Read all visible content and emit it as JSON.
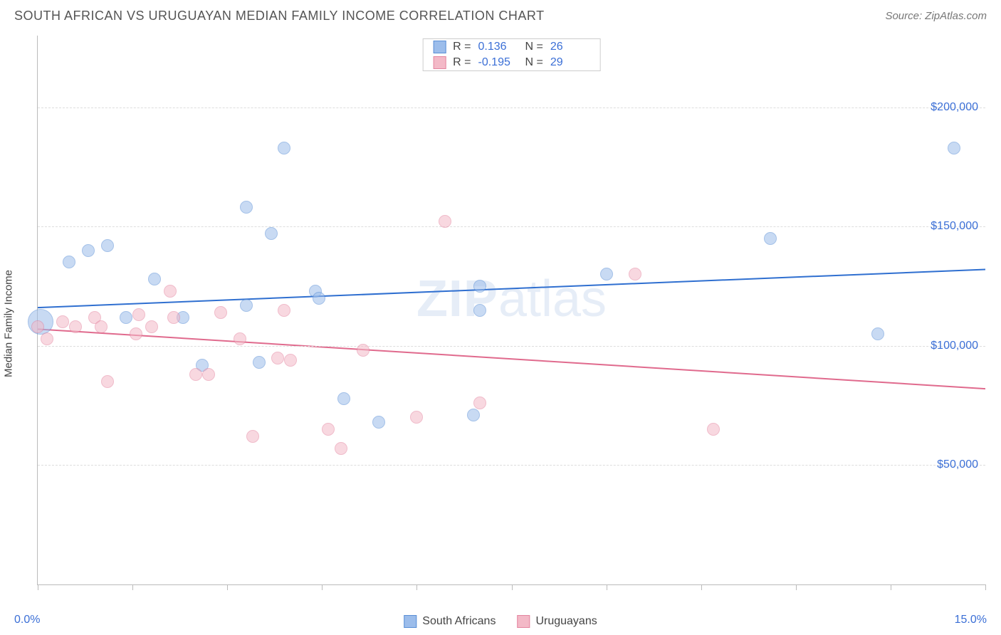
{
  "header": {
    "title": "SOUTH AFRICAN VS URUGUAYAN MEDIAN FAMILY INCOME CORRELATION CHART",
    "source": "Source: ZipAtlas.com"
  },
  "chart": {
    "type": "scatter",
    "watermark_a": "ZIP",
    "watermark_b": "atlas",
    "background_color": "#ffffff",
    "grid_color": "#dddddd",
    "axis_color": "#bbbbbb",
    "label_color": "#444444",
    "tick_label_color": "#3b6fd6",
    "ylabel": "Median Family Income",
    "xlim": [
      0,
      15
    ],
    "ylim": [
      0,
      230000
    ],
    "y_gridlines": [
      50000,
      100000,
      150000,
      200000
    ],
    "y_tick_labels": [
      "$50,000",
      "$100,000",
      "$150,000",
      "$200,000"
    ],
    "x_tick_labels": {
      "min": "0.0%",
      "max": "15.0%"
    },
    "x_ticks": [
      0,
      1.5,
      3.0,
      4.5,
      6.0,
      7.5,
      9.0,
      10.5,
      12.0,
      13.5,
      15.0
    ],
    "marker_radius": 9,
    "marker_opacity": 0.55,
    "series": [
      {
        "name": "South Africans",
        "fill_color": "#9cbdeb",
        "stroke_color": "#5a8fd6",
        "trend_color": "#2f6fd0",
        "trend_width": 2,
        "R": "0.136",
        "N": "26",
        "trend": {
          "y_at_xmin": 116000,
          "y_at_xmax": 132000
        },
        "points": [
          {
            "x": 0.05,
            "y": 110000,
            "r": 18
          },
          {
            "x": 0.5,
            "y": 135000
          },
          {
            "x": 0.8,
            "y": 140000
          },
          {
            "x": 1.1,
            "y": 142000
          },
          {
            "x": 1.4,
            "y": 112000
          },
          {
            "x": 1.85,
            "y": 128000
          },
          {
            "x": 2.3,
            "y": 112000
          },
          {
            "x": 2.6,
            "y": 92000
          },
          {
            "x": 3.3,
            "y": 158000
          },
          {
            "x": 3.3,
            "y": 117000
          },
          {
            "x": 3.5,
            "y": 93000
          },
          {
            "x": 3.7,
            "y": 147000
          },
          {
            "x": 3.9,
            "y": 183000
          },
          {
            "x": 4.4,
            "y": 123000
          },
          {
            "x": 4.45,
            "y": 120000
          },
          {
            "x": 4.85,
            "y": 78000
          },
          {
            "x": 5.4,
            "y": 68000
          },
          {
            "x": 6.9,
            "y": 71000
          },
          {
            "x": 7.0,
            "y": 125000
          },
          {
            "x": 7.0,
            "y": 115000
          },
          {
            "x": 9.0,
            "y": 130000
          },
          {
            "x": 11.6,
            "y": 145000
          },
          {
            "x": 13.3,
            "y": 105000
          },
          {
            "x": 14.5,
            "y": 183000
          }
        ]
      },
      {
        "name": "Uruguayans",
        "fill_color": "#f3b9c7",
        "stroke_color": "#e485a0",
        "trend_color": "#e06a8d",
        "trend_width": 2,
        "R": "-0.195",
        "N": "29",
        "trend": {
          "y_at_xmin": 107000,
          "y_at_xmax": 82000
        },
        "points": [
          {
            "x": 0.0,
            "y": 108000
          },
          {
            "x": 0.15,
            "y": 103000
          },
          {
            "x": 0.4,
            "y": 110000
          },
          {
            "x": 0.6,
            "y": 108000
          },
          {
            "x": 0.9,
            "y": 112000
          },
          {
            "x": 1.0,
            "y": 108000
          },
          {
            "x": 1.1,
            "y": 85000
          },
          {
            "x": 1.55,
            "y": 105000
          },
          {
            "x": 1.6,
            "y": 113000
          },
          {
            "x": 1.8,
            "y": 108000
          },
          {
            "x": 2.1,
            "y": 123000
          },
          {
            "x": 2.15,
            "y": 112000
          },
          {
            "x": 2.5,
            "y": 88000
          },
          {
            "x": 2.7,
            "y": 88000
          },
          {
            "x": 2.9,
            "y": 114000
          },
          {
            "x": 3.2,
            "y": 103000
          },
          {
            "x": 3.4,
            "y": 62000
          },
          {
            "x": 3.8,
            "y": 95000
          },
          {
            "x": 3.9,
            "y": 115000
          },
          {
            "x": 4.0,
            "y": 94000
          },
          {
            "x": 4.6,
            "y": 65000
          },
          {
            "x": 4.8,
            "y": 57000
          },
          {
            "x": 5.15,
            "y": 98000
          },
          {
            "x": 6.0,
            "y": 70000
          },
          {
            "x": 6.45,
            "y": 152000
          },
          {
            "x": 7.0,
            "y": 76000
          },
          {
            "x": 9.45,
            "y": 130000
          },
          {
            "x": 10.7,
            "y": 65000
          }
        ]
      }
    ]
  },
  "legend": {
    "series_a": "South Africans",
    "series_b": "Uruguayans"
  }
}
